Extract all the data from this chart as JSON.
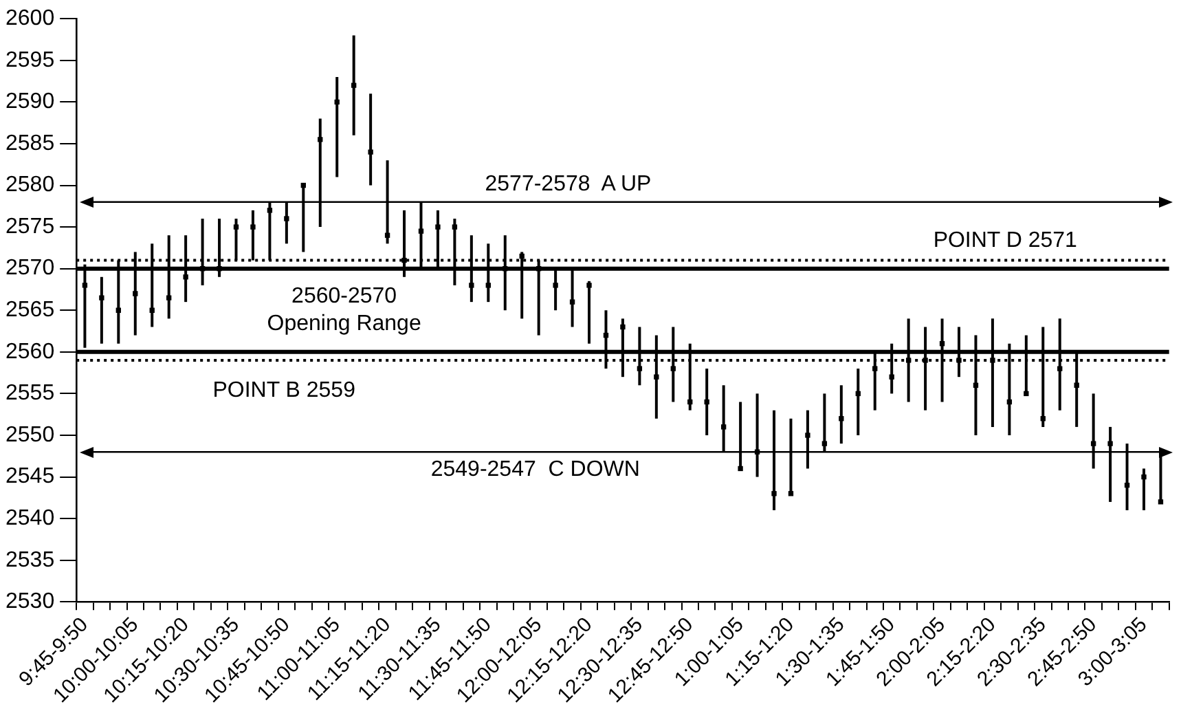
{
  "chart_data": {
    "type": "scatter",
    "color": "#000000",
    "marker": "square",
    "categories": [
      "9:45-9:50",
      null,
      null,
      "10:00-10:05",
      null,
      null,
      "10:15-10:20",
      null,
      null,
      "10:30-10:35",
      null,
      null,
      "10:45-10:50",
      null,
      null,
      "11:00-11:05",
      null,
      null,
      "11:15-11:20",
      null,
      null,
      "11:30-11:35",
      null,
      null,
      "11:45-11:50",
      null,
      null,
      "12:00-12:05",
      null,
      null,
      "12:15-12:20",
      null,
      null,
      "12:30-12:35",
      null,
      null,
      "12:45-12:50",
      null,
      null,
      "1:00-1:05",
      null,
      null,
      "1:15-1:20",
      null,
      null,
      "1:30-1:35",
      null,
      null,
      "1:45-1:50",
      null,
      null,
      "2:00-2:05",
      null,
      null,
      "2:15-2:20",
      null,
      null,
      "2:30-2:35",
      null,
      null,
      "2:45-2:50",
      null,
      null,
      "3:00-3:05",
      null
    ],
    "values": [
      2568,
      2566.5,
      2565,
      2567,
      2565,
      2566.5,
      2569,
      2570,
      2570,
      2575,
      2575,
      2577,
      2576,
      2580,
      2585.5,
      2590,
      2592,
      2584,
      2574,
      2571,
      2574.5,
      2575,
      2575,
      2568,
      2568,
      2570,
      2571.5,
      2570,
      2568,
      2566,
      2568,
      2562,
      2563,
      2558,
      2557,
      2558,
      2554,
      2554,
      2551,
      2546,
      2548,
      2543,
      2543,
      2550,
      2549,
      2552,
      2555,
      2558,
      2557,
      2559,
      2559,
      2561,
      2559,
      2556,
      2559,
      2554,
      2555,
      2552,
      2558,
      2556,
      2549,
      2549,
      2544,
      2545,
      2542
    ],
    "errors": [
      [
        2560.5,
        2570.5
      ],
      [
        2561,
        2569
      ],
      [
        2561,
        2571
      ],
      [
        2562,
        2572
      ],
      [
        2563,
        2573
      ],
      [
        2564,
        2574
      ],
      [
        2566,
        2574
      ],
      [
        2568,
        2576
      ],
      [
        2569,
        2576
      ],
      [
        2571,
        2576
      ],
      [
        2571,
        2577
      ],
      [
        2571,
        2578
      ],
      [
        2573,
        2578
      ],
      [
        2572,
        2580
      ],
      [
        2575,
        2588
      ],
      [
        2581,
        2593
      ],
      [
        2586,
        2598
      ],
      [
        2580,
        2591
      ],
      [
        2573,
        2583
      ],
      [
        2569,
        2577
      ],
      [
        2570,
        2578
      ],
      [
        2570,
        2577
      ],
      [
        2568,
        2576
      ],
      [
        2566,
        2574
      ],
      [
        2566,
        2573
      ],
      [
        2565,
        2574
      ],
      [
        2564,
        2572
      ],
      [
        2562,
        2571
      ],
      [
        2565,
        2570
      ],
      [
        2563,
        2570
      ],
      [
        2561,
        2568.5
      ],
      [
        2558,
        2565
      ],
      [
        2557,
        2564
      ],
      [
        2556,
        2563
      ],
      [
        2552,
        2562
      ],
      [
        2554,
        2563
      ],
      [
        2553,
        2561
      ],
      [
        2550,
        2558
      ],
      [
        2548,
        2556
      ],
      [
        2546,
        2554
      ],
      [
        2545,
        2555
      ],
      [
        2541,
        2553
      ],
      [
        2543,
        2552
      ],
      [
        2546,
        2553
      ],
      [
        2548,
        2555
      ],
      [
        2549,
        2556
      ],
      [
        2550,
        2558
      ],
      [
        2553,
        2560
      ],
      [
        2555,
        2561
      ],
      [
        2554,
        2564
      ],
      [
        2553,
        2563
      ],
      [
        2554,
        2564
      ],
      [
        2557,
        2563
      ],
      [
        2550,
        2562
      ],
      [
        2551,
        2564
      ],
      [
        2550,
        2561
      ],
      [
        2555,
        2562
      ],
      [
        2551,
        2563
      ],
      [
        2553,
        2564
      ],
      [
        2551,
        2560
      ],
      [
        2546,
        2555
      ],
      [
        2542,
        2551
      ],
      [
        2541,
        2549
      ],
      [
        2541,
        2546
      ],
      [
        2542,
        2548
      ]
    ],
    "ylim": [
      2530,
      2600
    ],
    "yticks": [
      2530,
      2535,
      2540,
      2545,
      2550,
      2555,
      2560,
      2565,
      2570,
      2575,
      2580,
      2585,
      2590,
      2595,
      2600
    ],
    "annotations": [
      "2560-2570\nOpening Range"
    ],
    "ref_lines": [
      {
        "axis": "y",
        "value": 2578,
        "label": "2577-2578  A UP",
        "line_style": "solid"
      },
      {
        "axis": "y",
        "value": 2571,
        "label": "POINT D 2571",
        "line_style": "dotted"
      },
      {
        "axis": "y",
        "value": 2570,
        "color": "#000000",
        "line_style": "solid"
      },
      {
        "axis": "y",
        "value": 2560,
        "color": "#000000",
        "line_style": "solid"
      },
      {
        "axis": "y",
        "value": 2559,
        "label": "POINT B 2559",
        "line_style": "dotted"
      },
      {
        "axis": "y",
        "value": 2548,
        "label": "2549-2547  C DOWN",
        "line_style": "solid"
      }
    ]
  }
}
